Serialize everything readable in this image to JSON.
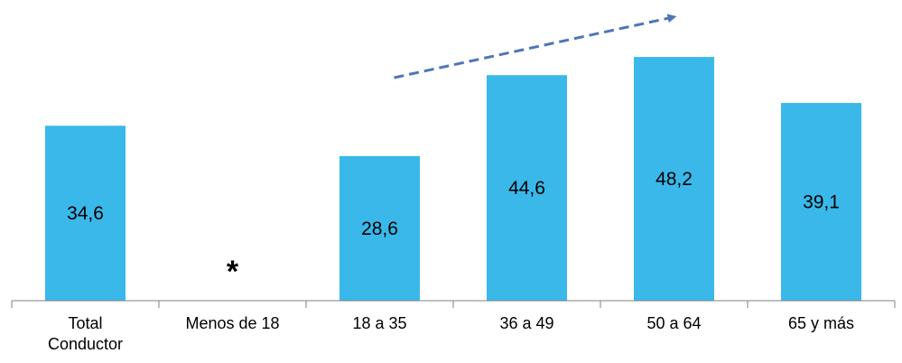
{
  "chart_data": {
    "type": "bar",
    "categories": [
      [
        "Total",
        "Conductor"
      ],
      [
        "Menos de 18"
      ],
      [
        "18 a 35"
      ],
      [
        "36 a 49"
      ],
      [
        "50 a 64"
      ],
      [
        "65 y más"
      ]
    ],
    "values": [
      34.6,
      null,
      28.6,
      44.6,
      48.2,
      39.1
    ],
    "value_labels": [
      "34,6",
      "*",
      "28,6",
      "44,6",
      "48,2",
      "39,1"
    ],
    "ylim": [
      0,
      55
    ],
    "grid": false,
    "legend": "none",
    "colors": {
      "bar": "#3ab8ea",
      "arrow": "#4f75b8",
      "axis": "#7f7f7f"
    },
    "annotations": [
      {
        "type": "trend-arrow",
        "style": "dashed",
        "from_category": 2,
        "to_category": 4
      }
    ]
  }
}
